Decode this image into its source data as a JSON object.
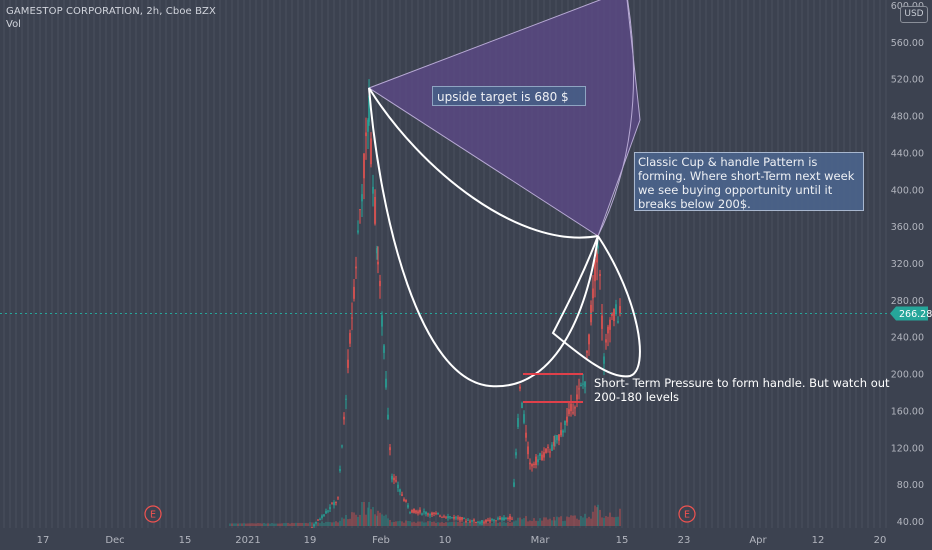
{
  "header": {
    "symbol_line": "GAMESTOP CORPORATION, 2h, Cboe BZX",
    "indicator": "Vol"
  },
  "currency_badge": "USD",
  "annotations": {
    "target": "upside target is 680 $",
    "pattern": "Classic Cup & handle Pattern is forming. Where short-Term next week we see buying opportunity until it breaks below 200$.",
    "handle": "Short- Term Pressure to form handle. But watch out 200-180 levels"
  },
  "colors": {
    "background": "#3c4250",
    "grid": "#4a505e",
    "up_candle": "#26a69a",
    "down_candle": "#ef5350",
    "price_line": "#26a69a",
    "fan_fill": "#5d4a8a",
    "cup_outline": "#ffffff"
  },
  "chart_data": {
    "type": "candlestick",
    "title": "GAMESTOP CORPORATION, 2h, Cboe BZX",
    "y_ticks": [
      40,
      80,
      120,
      160,
      200,
      240,
      280,
      320,
      360,
      400,
      440,
      480,
      520,
      560,
      600
    ],
    "y_tick_labels": [
      "40.00",
      "80.00",
      "120.00",
      "160.00",
      "200.00",
      "240.00",
      "280.00",
      "320.00",
      "360.00",
      "400.00",
      "440.00",
      "480.00",
      "520.00",
      "560.00",
      "600.00"
    ],
    "x_tick_labels": [
      "17",
      "Dec",
      "15",
      "2021",
      "19",
      "Feb",
      "10",
      "Mar",
      "15",
      "23",
      "Apr",
      "12",
      "20"
    ],
    "last_price": 266.28,
    "last_price_label": "266.28",
    "earnings_markers": [
      "E",
      "E"
    ],
    "price_path": [
      {
        "date": "Dec 15",
        "price": 15
      },
      {
        "date": "Jan 12",
        "price": 20
      },
      {
        "date": "Jan 22",
        "price": 65
      },
      {
        "date": "Jan 27",
        "price": 380
      },
      {
        "date": "Jan 28",
        "price": 483
      },
      {
        "date": "Jan 29",
        "price": 325
      },
      {
        "date": "Feb 2",
        "price": 90
      },
      {
        "date": "Feb 4",
        "price": 53
      },
      {
        "date": "Feb 19",
        "price": 40
      },
      {
        "date": "Feb 24",
        "price": 45
      },
      {
        "date": "Feb 25",
        "price": 184
      },
      {
        "date": "Feb 26",
        "price": 101
      },
      {
        "date": "Mar 3",
        "price": 124
      },
      {
        "date": "Mar 8",
        "price": 194
      },
      {
        "date": "Mar 10",
        "price": 348
      },
      {
        "date": "Mar 10 b",
        "price": 214
      },
      {
        "date": "Mar 11",
        "price": 260
      },
      {
        "date": "Mar 12",
        "price": 265
      },
      {
        "date": "Mar 15",
        "price": 266.28
      }
    ],
    "levels": [
      200,
      180
    ]
  }
}
